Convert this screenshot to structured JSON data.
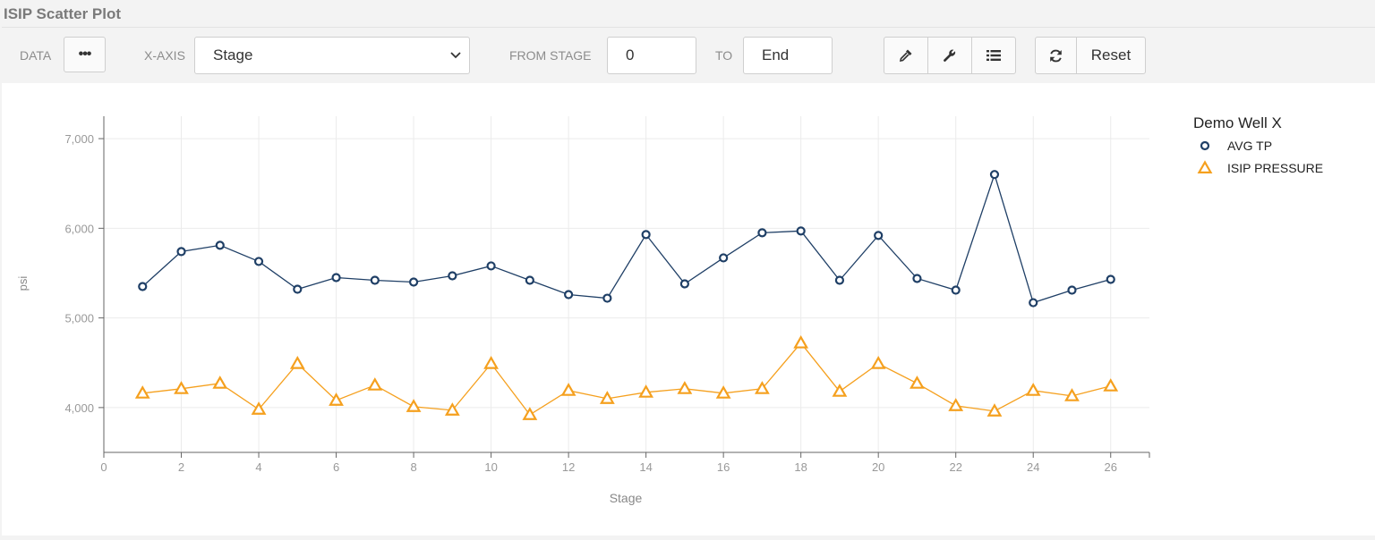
{
  "page": {
    "title": "ISIP Scatter Plot"
  },
  "toolbar": {
    "data_label": "DATA",
    "xaxis_label": "X-AXIS",
    "xaxis_value": "Stage",
    "from_label": "FROM STAGE",
    "from_value": "0",
    "to_label": "TO",
    "to_value": "End",
    "reset_label": "Reset",
    "icons": [
      "ellipsis-icon",
      "chevron-down-icon",
      "eyedropper-icon",
      "wrench-icon",
      "list-icon",
      "refresh-icon"
    ]
  },
  "colors": {
    "avg_tp": "#1f3f66",
    "isip": "#f5a01e",
    "grid": "#ebebeb",
    "axis": "#666666"
  },
  "chart_data": {
    "type": "scatter",
    "title": "Demo Well X",
    "xlabel": "Stage",
    "ylabel": "psi",
    "xlim": [
      0,
      27
    ],
    "ylim": [
      3500,
      7250
    ],
    "xticks": [
      0,
      2,
      4,
      6,
      8,
      10,
      12,
      14,
      16,
      18,
      20,
      22,
      24,
      26
    ],
    "yticks": [
      4000,
      5000,
      6000,
      7000
    ],
    "ytick_labels": [
      "4,000",
      "5,000",
      "6,000",
      "7,000"
    ],
    "grid": true,
    "legend_position": "top-right",
    "x": [
      1,
      2,
      3,
      4,
      5,
      6,
      7,
      8,
      9,
      10,
      11,
      12,
      13,
      14,
      15,
      16,
      17,
      18,
      19,
      20,
      21,
      22,
      23,
      24,
      25,
      26
    ],
    "series": [
      {
        "name": "AVG TP",
        "marker": "circle",
        "color": "#1f3f66",
        "values": [
          5350,
          5740,
          5810,
          5630,
          5320,
          5450,
          5420,
          5400,
          5470,
          5580,
          5420,
          5260,
          5220,
          5930,
          5380,
          5670,
          5950,
          5970,
          5420,
          5920,
          5440,
          5310,
          6600,
          5170,
          5310,
          5430
        ]
      },
      {
        "name": "ISIP PRESSURE",
        "marker": "triangle",
        "color": "#f5a01e",
        "values": [
          4160,
          4210,
          4270,
          3980,
          4490,
          4080,
          4250,
          4010,
          3970,
          4490,
          3920,
          4190,
          4100,
          4170,
          4210,
          4160,
          4210,
          4720,
          4180,
          4490,
          4270,
          4020,
          3960,
          4190,
          4130,
          4240
        ]
      }
    ]
  }
}
